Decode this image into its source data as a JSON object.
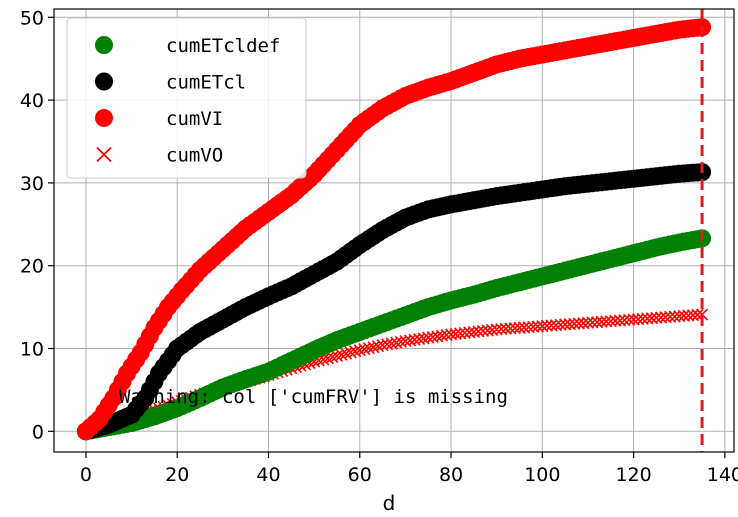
{
  "chart_data": {
    "type": "scatter",
    "xlabel": "d",
    "ylabel": "",
    "title": "",
    "xlim": [
      -7,
      142
    ],
    "ylim": [
      -2.5,
      51
    ],
    "xticks": [
      0,
      20,
      40,
      60,
      80,
      100,
      120,
      140
    ],
    "yticks": [
      0,
      10,
      20,
      30,
      40,
      50
    ],
    "grid": true,
    "legend_position": "top-left",
    "vline": {
      "x": 135,
      "color": "#e41a1c",
      "style": "dashed"
    },
    "annotation": "Warning: col ['cumFRV'] is missing",
    "series": [
      {
        "name": "cumETcldef",
        "marker": "circle",
        "color": "#008000",
        "x": [
          0,
          5,
          10,
          15,
          20,
          25,
          30,
          35,
          40,
          45,
          50,
          55,
          60,
          65,
          70,
          75,
          80,
          85,
          90,
          95,
          100,
          105,
          110,
          115,
          120,
          125,
          130,
          135
        ],
        "y": [
          0,
          0.5,
          1.0,
          1.8,
          2.8,
          4.0,
          5.3,
          6.3,
          7.2,
          8.5,
          9.8,
          11.0,
          12.0,
          13.0,
          14.0,
          15.0,
          15.8,
          16.5,
          17.3,
          18.0,
          18.7,
          19.4,
          20.1,
          20.8,
          21.5,
          22.2,
          22.8,
          23.3
        ]
      },
      {
        "name": "cumETcl",
        "marker": "circle",
        "color": "#000000",
        "x": [
          0,
          5,
          10,
          13,
          16,
          20,
          25,
          30,
          35,
          40,
          45,
          50,
          55,
          60,
          65,
          70,
          75,
          80,
          85,
          90,
          95,
          100,
          105,
          110,
          115,
          120,
          125,
          130,
          135
        ],
        "y": [
          0,
          0.8,
          2.0,
          4.0,
          7.0,
          10.0,
          12.0,
          13.5,
          15.0,
          16.3,
          17.5,
          19.0,
          20.5,
          22.5,
          24.3,
          25.8,
          26.8,
          27.4,
          27.9,
          28.4,
          28.8,
          29.2,
          29.6,
          29.9,
          30.2,
          30.5,
          30.8,
          31.1,
          31.3
        ]
      },
      {
        "name": "cumVI",
        "marker": "circle",
        "color": "#ff0000",
        "x": [
          0,
          3,
          6,
          9,
          12,
          15,
          18,
          21,
          25,
          30,
          35,
          40,
          45,
          50,
          55,
          60,
          65,
          70,
          75,
          80,
          85,
          90,
          95,
          100,
          105,
          110,
          115,
          120,
          125,
          130,
          135
        ],
        "y": [
          0,
          1.5,
          4.0,
          7.0,
          9.5,
          12.5,
          15.0,
          17.0,
          19.5,
          22.0,
          24.5,
          26.5,
          28.5,
          31.0,
          34.0,
          37.0,
          39.0,
          40.5,
          41.5,
          42.3,
          43.3,
          44.3,
          45.0,
          45.5,
          46.0,
          46.5,
          47.0,
          47.5,
          48.0,
          48.5,
          48.8
        ]
      },
      {
        "name": "cumVO",
        "marker": "x",
        "color": "#ff0000",
        "x": [
          0,
          5,
          10,
          15,
          20,
          25,
          30,
          35,
          40,
          45,
          50,
          55,
          60,
          65,
          70,
          75,
          80,
          85,
          90,
          95,
          100,
          105,
          110,
          115,
          120,
          125,
          130,
          135
        ],
        "y": [
          0,
          0.8,
          1.7,
          2.6,
          3.5,
          4.4,
          5.2,
          6.0,
          6.8,
          7.6,
          8.4,
          9.1,
          9.8,
          10.4,
          10.9,
          11.3,
          11.7,
          12.0,
          12.3,
          12.5,
          12.7,
          12.9,
          13.1,
          13.3,
          13.5,
          13.7,
          13.9,
          14.1
        ]
      }
    ]
  }
}
